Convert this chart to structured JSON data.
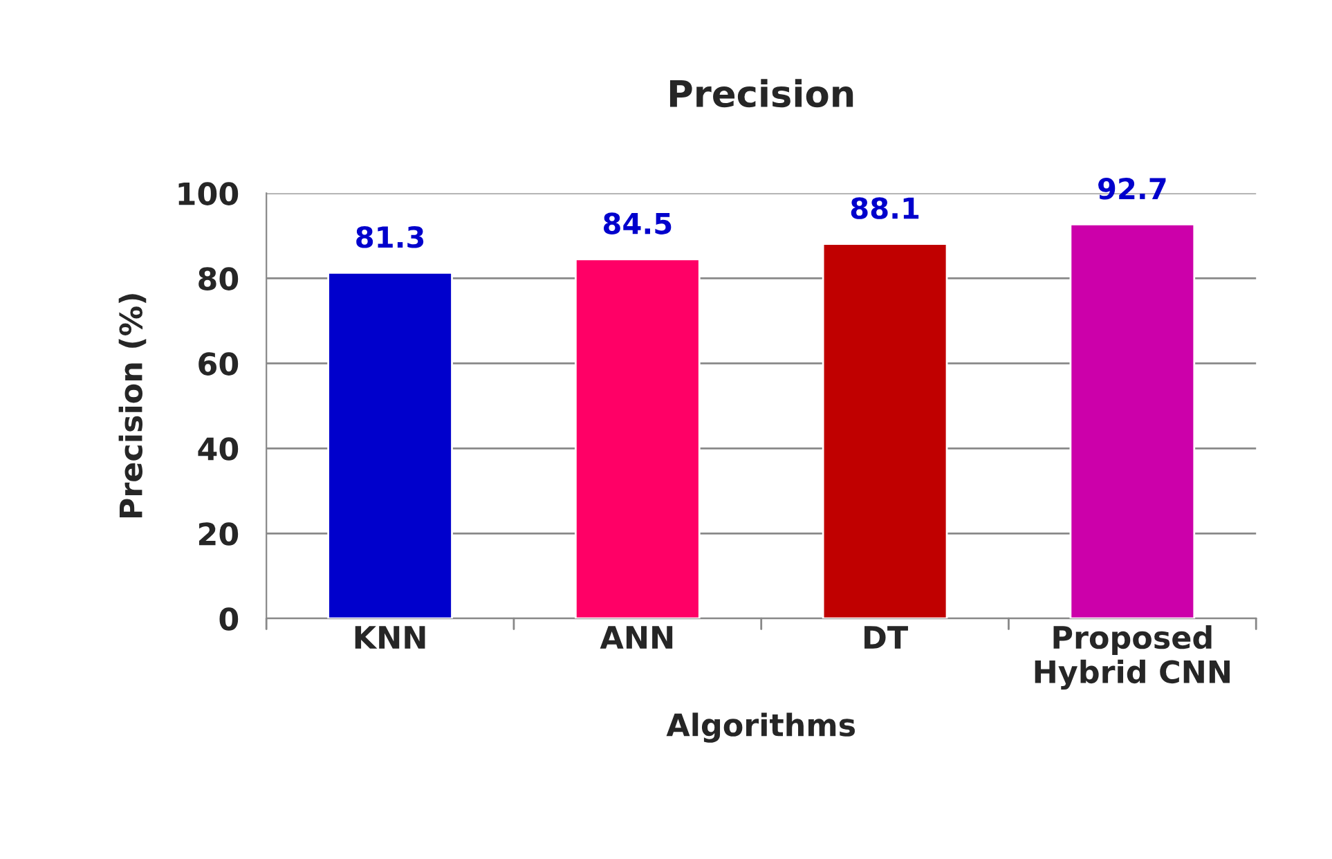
{
  "chart_data": {
    "type": "bar",
    "title": "Precision",
    "xlabel": "Algorithms",
    "ylabel": "Precision (%)",
    "categories": [
      "KNN",
      "ANN",
      "DT",
      "Proposed\nHybrid CNN"
    ],
    "values": [
      81.3,
      84.5,
      88.1,
      92.7
    ],
    "colors": [
      "#0000cc",
      "#ff0066",
      "#c00000",
      "#cc00aa"
    ],
    "ylim": [
      0,
      100
    ],
    "yticks": [
      0,
      20,
      40,
      60,
      80,
      100
    ],
    "grid": "y",
    "data_labels": true,
    "legend": false
  }
}
